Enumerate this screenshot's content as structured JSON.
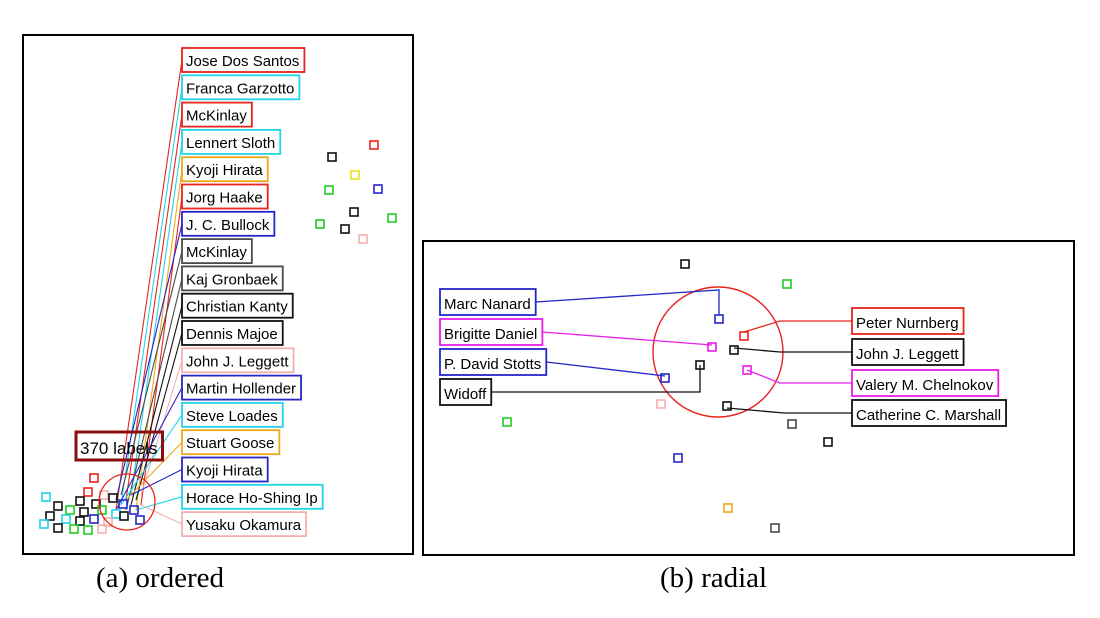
{
  "captions": {
    "a": "(a) ordered",
    "b": "(b) radial"
  },
  "colors": {
    "red": "#e8241c",
    "cyan": "#22d4e8",
    "orange": "#f0a818",
    "blue": "#2626c8",
    "gray": "#4a4a4a",
    "black": "#111111",
    "pink": "#f4b0b0",
    "magenta": "#e81ee8",
    "green": "#22cc22",
    "yellow": "#e8e020",
    "darkred": "#8a0e0e"
  },
  "ordered": {
    "count_label": "370 labels",
    "labels": [
      {
        "text": "Jose Dos Santos",
        "color": "red"
      },
      {
        "text": "Franca Garzotto",
        "color": "cyan"
      },
      {
        "text": "McKinlay",
        "color": "red"
      },
      {
        "text": "Lennert Sloth",
        "color": "cyan"
      },
      {
        "text": "Kyoji Hirata",
        "color": "orange"
      },
      {
        "text": "Jorg Haake",
        "color": "red"
      },
      {
        "text": "J. C. Bullock",
        "color": "blue"
      },
      {
        "text": "McKinlay",
        "color": "gray"
      },
      {
        "text": "Kaj Gronbaek",
        "color": "gray"
      },
      {
        "text": "Christian Kanty",
        "color": "black"
      },
      {
        "text": "Dennis Majoe",
        "color": "black"
      },
      {
        "text": "John J. Leggett",
        "color": "pink"
      },
      {
        "text": "Martin Hollender",
        "color": "blue"
      },
      {
        "text": "Steve Loades",
        "color": "cyan"
      },
      {
        "text": "Stuart Goose",
        "color": "orange"
      },
      {
        "text": "Kyoji Hirata",
        "color": "blue"
      },
      {
        "text": "Horace Ho-Shing Ip",
        "color": "cyan"
      },
      {
        "text": "Yusaku Okamura",
        "color": "pink"
      }
    ]
  },
  "radial": {
    "left_labels": [
      {
        "text": "Marc Nanard",
        "color": "blue"
      },
      {
        "text": "Brigitte Daniel",
        "color": "magenta"
      },
      {
        "text": "P. David Stotts",
        "color": "blue"
      },
      {
        "text": "Widoff",
        "color": "black"
      }
    ],
    "right_labels": [
      {
        "text": "Peter Nurnberg",
        "color": "red"
      },
      {
        "text": "John J. Leggett",
        "color": "black"
      },
      {
        "text": "Valery M. Chelnokov",
        "color": "magenta"
      },
      {
        "text": "Catherine C. Marshall",
        "color": "black"
      }
    ]
  }
}
